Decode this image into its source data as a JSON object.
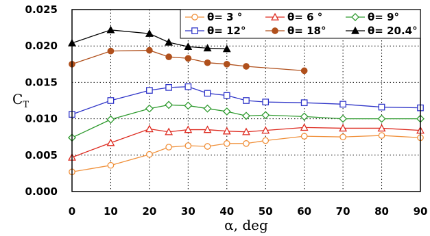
{
  "chart_data": {
    "type": "line",
    "xlabel": "α, deg",
    "ylabel": "C",
    "ylabel_subscript": "T",
    "xlim": [
      0,
      90
    ],
    "ylim": [
      0,
      0.025
    ],
    "xticks": [
      0,
      10,
      20,
      30,
      40,
      50,
      60,
      70,
      80,
      90
    ],
    "xtick_labels": [
      "0",
      "10",
      "20",
      "30",
      "40",
      "50",
      "60",
      "70",
      "80",
      "90"
    ],
    "yticks": [
      0,
      0.005,
      0.01,
      0.015,
      0.02,
      0.025
    ],
    "ytick_labels": [
      "0.000",
      "0.005",
      "0.010",
      "0.015",
      "0.020",
      "0.025"
    ],
    "grid": "dotted",
    "legend_position": "top-right",
    "legend_columns": 3,
    "series": [
      {
        "name": "θ= 3 °",
        "color": "#f0903a",
        "marker": "circle-open",
        "x": [
          0,
          10,
          20,
          25,
          30,
          35,
          40,
          45,
          50,
          60,
          70,
          80,
          90
        ],
        "y": [
          0.0027,
          0.0036,
          0.0051,
          0.0061,
          0.0063,
          0.0062,
          0.0066,
          0.0066,
          0.007,
          0.0076,
          0.0075,
          0.0077,
          0.0074
        ]
      },
      {
        "name": "θ= 6 °",
        "color": "#dd2a1f",
        "marker": "triangle-open",
        "x": [
          0,
          10,
          20,
          25,
          30,
          35,
          40,
          45,
          50,
          60,
          70,
          80,
          90
        ],
        "y": [
          0.0047,
          0.0067,
          0.0086,
          0.0082,
          0.0085,
          0.0085,
          0.0083,
          0.0082,
          0.0084,
          0.0088,
          0.0087,
          0.0087,
          0.0084
        ]
      },
      {
        "name": "θ= 9°",
        "color": "#2e9a2e",
        "marker": "diamond-open",
        "x": [
          0,
          10,
          20,
          25,
          30,
          35,
          40,
          45,
          50,
          60,
          70,
          80,
          90
        ],
        "y": [
          0.0074,
          0.0099,
          0.0114,
          0.0119,
          0.0118,
          0.0114,
          0.011,
          0.0104,
          0.0105,
          0.0103,
          0.01,
          0.01,
          0.01
        ]
      },
      {
        "name": "θ= 12°",
        "color": "#2f35c8",
        "marker": "square-open",
        "x": [
          0,
          10,
          20,
          25,
          30,
          35,
          40,
          45,
          50,
          60,
          70,
          80,
          90
        ],
        "y": [
          0.0106,
          0.0125,
          0.0139,
          0.0143,
          0.0144,
          0.0135,
          0.0132,
          0.0125,
          0.0123,
          0.0122,
          0.012,
          0.0116,
          0.0115
        ]
      },
      {
        "name": "θ= 18°",
        "color": "#b0501c",
        "marker": "circle-filled",
        "x": [
          0,
          10,
          20,
          25,
          30,
          35,
          40,
          45,
          60
        ],
        "y": [
          0.0175,
          0.0193,
          0.0194,
          0.0185,
          0.0183,
          0.0177,
          0.0175,
          0.0172,
          0.0166
        ]
      },
      {
        "name": "θ= 20.4°",
        "color": "#000000",
        "marker": "triangle-filled",
        "x": [
          0,
          10,
          20,
          25,
          30,
          35,
          40
        ],
        "y": [
          0.0204,
          0.0222,
          0.0217,
          0.0205,
          0.0199,
          0.0197,
          0.0196
        ]
      }
    ]
  }
}
